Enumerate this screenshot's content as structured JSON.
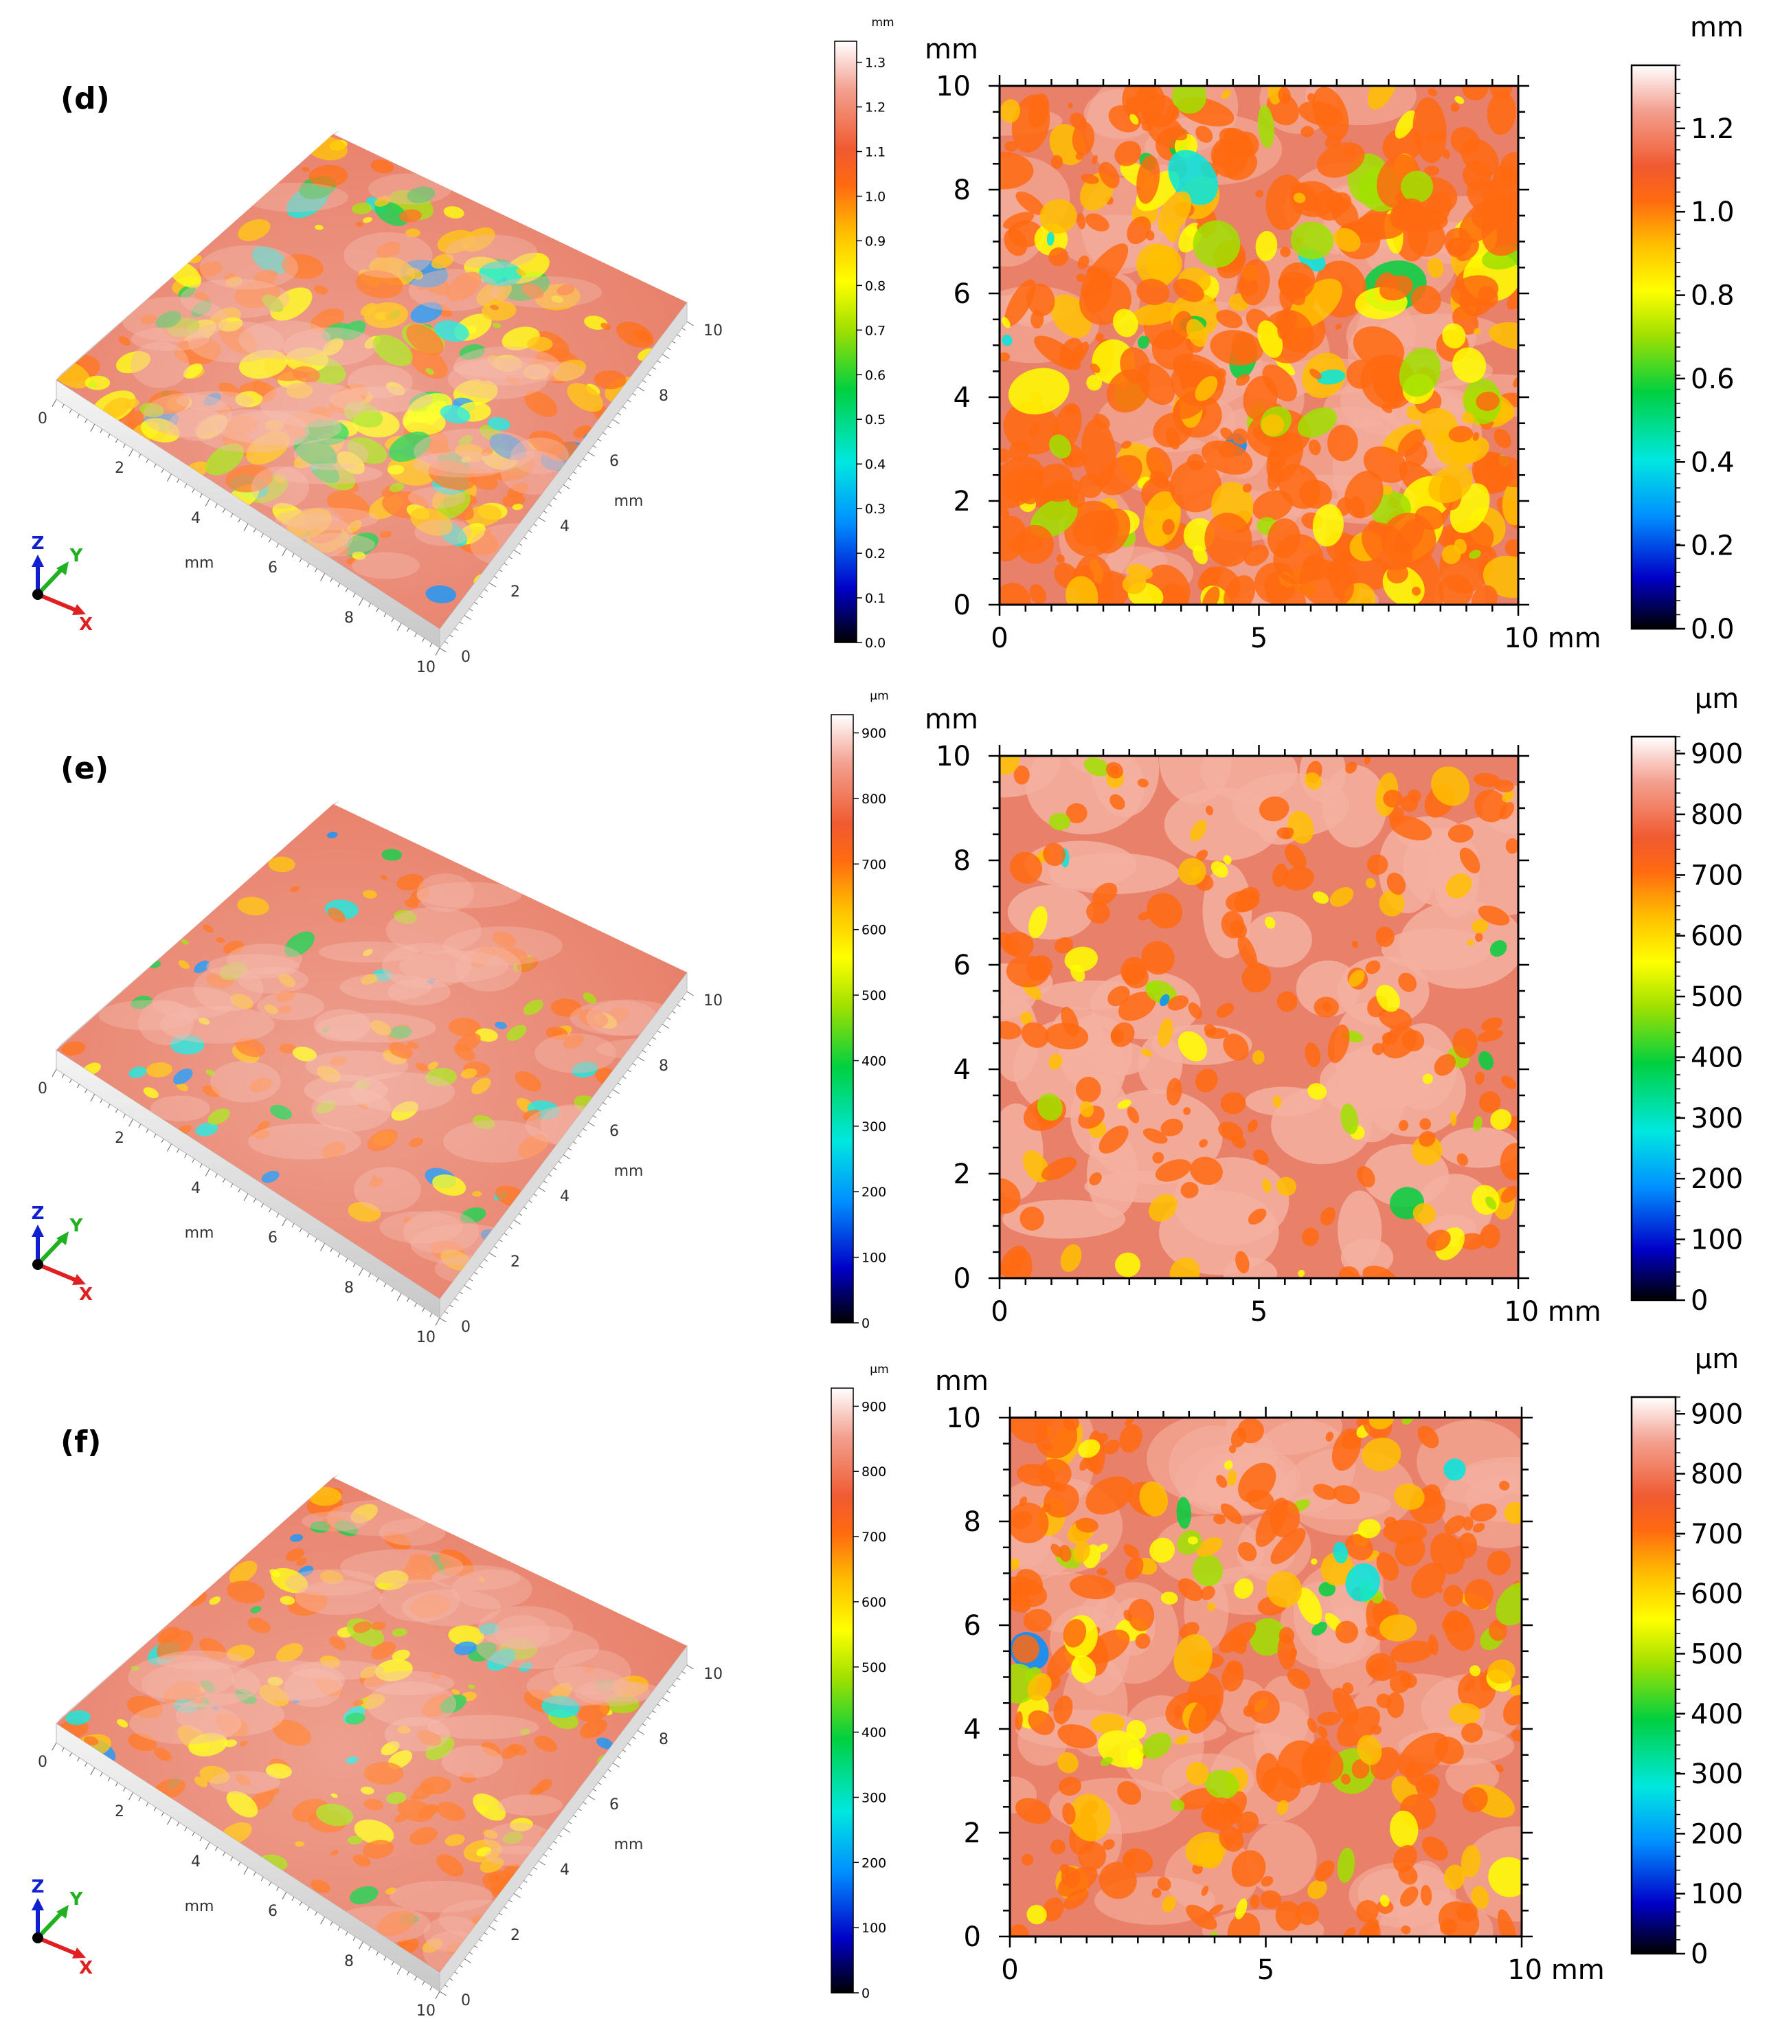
{
  "colors": {
    "cmap": [
      "#000000",
      "#0000c8",
      "#0090ff",
      "#00e8e0",
      "#00d040",
      "#a0e000",
      "#ffff00",
      "#ffc000",
      "#ff6a10",
      "#f05a30",
      "#f3a090",
      "#ffffff"
    ],
    "surface": "#e8806a",
    "surface_light": "#f5b0a0",
    "axis_x": "#e02020",
    "axis_y": "#20b020",
    "axis_z": "#1020d0"
  },
  "panels": [
    {
      "label": "(d)",
      "iso": {
        "left_ticks": [
          "0",
          "2",
          "4",
          "6",
          "8",
          "10"
        ],
        "right_ticks": [
          "0",
          "2",
          "4",
          "6",
          "8",
          "10"
        ],
        "left_unit": "mm",
        "right_unit": "mm",
        "axes": [
          "X",
          "Y",
          "Z"
        ]
      },
      "small_bar": {
        "unit": "mm",
        "ticks": [
          "1.3",
          "1.2",
          "1.1",
          "1.0",
          "0.9",
          "0.8",
          "0.7",
          "0.6",
          "0.5",
          "0.4",
          "0.3",
          "0.2",
          "0.1",
          "0.0"
        ]
      },
      "map": {
        "y_unit": "mm",
        "y_ticks": [
          "10",
          "8",
          "6",
          "4",
          "2",
          "0"
        ],
        "x_ticks": [
          "0",
          "5",
          "10 mm"
        ]
      },
      "big_bar": {
        "unit": "mm",
        "ticks": [
          "1.2",
          "1.0",
          "0.8",
          "0.6",
          "0.4",
          "0.2",
          "0.0"
        ]
      }
    },
    {
      "label": "(e)",
      "iso": {
        "left_ticks": [
          "0",
          "2",
          "4",
          "6",
          "8",
          "10"
        ],
        "right_ticks": [
          "0",
          "2",
          "4",
          "6",
          "8",
          "10"
        ],
        "left_unit": "mm",
        "right_unit": "mm",
        "axes": [
          "X",
          "Y",
          "Z"
        ]
      },
      "small_bar": {
        "unit": "µm",
        "ticks": [
          "900",
          "800",
          "700",
          "600",
          "500",
          "400",
          "300",
          "200",
          "100",
          "0"
        ]
      },
      "map": {
        "y_unit": "mm",
        "y_ticks": [
          "10",
          "8",
          "6",
          "4",
          "2",
          "0"
        ],
        "x_ticks": [
          "0",
          "5",
          "10 mm"
        ]
      },
      "big_bar": {
        "unit": "µm",
        "ticks": [
          "900",
          "800",
          "700",
          "600",
          "500",
          "400",
          "300",
          "200",
          "100",
          "0"
        ]
      }
    },
    {
      "label": "(f)",
      "iso": {
        "left_ticks": [
          "0",
          "2",
          "4",
          "6",
          "8",
          "10"
        ],
        "right_ticks": [
          "0",
          "2",
          "4",
          "6",
          "8",
          "10"
        ],
        "left_unit": "mm",
        "right_unit": "mm",
        "axes": [
          "X",
          "Y",
          "Z"
        ]
      },
      "small_bar": {
        "unit": "µm",
        "ticks": [
          "900",
          "800",
          "700",
          "600",
          "500",
          "400",
          "300",
          "200",
          "100",
          "0"
        ]
      },
      "map": {
        "y_unit": "mm",
        "y_ticks": [
          "10",
          "8",
          "6",
          "4",
          "2",
          "0"
        ],
        "x_ticks": [
          "0",
          "5",
          "10 mm"
        ]
      },
      "big_bar": {
        "unit": "µm",
        "ticks": [
          "900",
          "800",
          "700",
          "600",
          "500",
          "400",
          "300",
          "200",
          "100",
          "0"
        ]
      }
    }
  ]
}
